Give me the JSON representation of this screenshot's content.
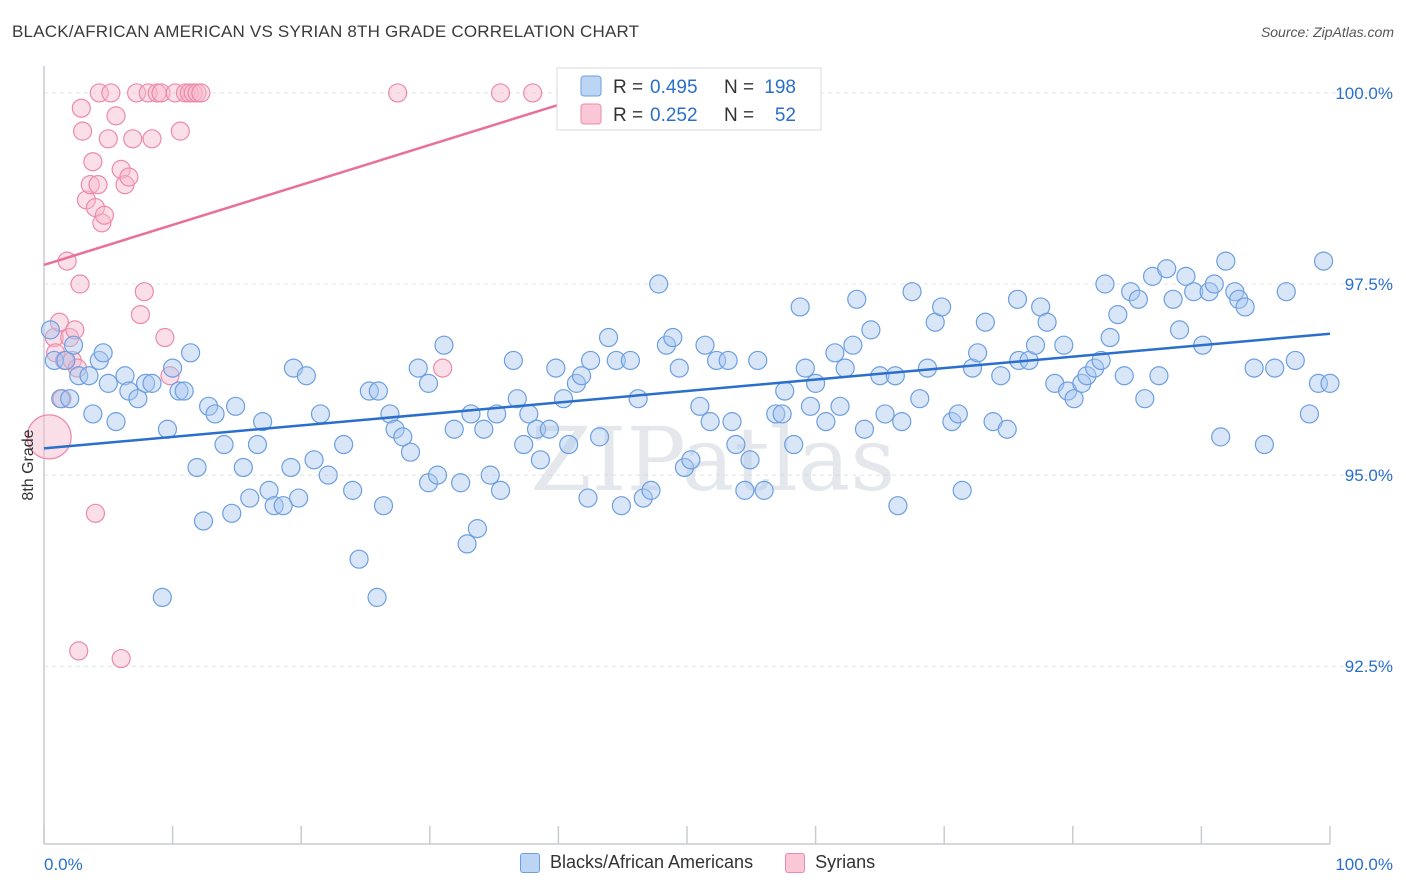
{
  "title": "BLACK/AFRICAN AMERICAN VS SYRIAN 8TH GRADE CORRELATION CHART",
  "source": "Source: ZipAtlas.com",
  "watermark": "ZIPatlas",
  "chart_data": {
    "type": "scatter",
    "ylabel": "8th Grade",
    "xlim": [
      0,
      100
    ],
    "ylim": [
      90.2,
      100.3
    ],
    "x_tick_labels": [
      "0.0%",
      "100.0%"
    ],
    "y_ticks": [
      100.0,
      97.5,
      95.0,
      92.5
    ],
    "y_tick_labels": [
      "100.0%",
      "97.5%",
      "95.0%",
      "92.5%"
    ],
    "grid": true,
    "legend_inset": {
      "position": "top-center",
      "rows": [
        {
          "r_label": "R =",
          "r_value": "0.495",
          "n_label": "N =",
          "n_value": "198"
        },
        {
          "r_label": "R =",
          "r_value": "0.252",
          "n_label": "N =",
          "n_value": "52"
        }
      ]
    },
    "colors": {
      "blue_fill": "#a9c8f0",
      "blue_stroke": "#6d9fe0",
      "blue_line": "#2a6fcc",
      "pink_fill": "#f7b9cb",
      "pink_stroke": "#ec8aa9",
      "pink_line": "#e8709a",
      "value_text": "#2a6fcc"
    },
    "series": [
      {
        "name": "Blacks/African Americans",
        "trend": {
          "x": [
            0,
            100
          ],
          "y": [
            95.35,
            96.85
          ]
        },
        "points": [
          [
            0.5,
            96.9
          ],
          [
            0.8,
            96.5
          ],
          [
            1.3,
            96.0
          ],
          [
            1.7,
            96.5
          ],
          [
            2.0,
            96.0
          ],
          [
            2.3,
            96.7
          ],
          [
            2.7,
            96.3
          ],
          [
            3.5,
            96.3
          ],
          [
            3.8,
            95.8
          ],
          [
            4.3,
            96.5
          ],
          [
            4.6,
            96.6
          ],
          [
            5.0,
            96.2
          ],
          [
            5.6,
            95.7
          ],
          [
            6.3,
            96.3
          ],
          [
            6.6,
            96.1
          ],
          [
            7.3,
            96.0
          ],
          [
            7.9,
            96.2
          ],
          [
            8.4,
            96.2
          ],
          [
            9.2,
            93.4
          ],
          [
            9.6,
            95.6
          ],
          [
            10.0,
            96.4
          ],
          [
            10.5,
            96.1
          ],
          [
            10.9,
            96.1
          ],
          [
            11.4,
            96.6
          ],
          [
            11.9,
            95.1
          ],
          [
            12.4,
            94.4
          ],
          [
            12.8,
            95.9
          ],
          [
            13.3,
            95.8
          ],
          [
            14.0,
            95.4
          ],
          [
            14.6,
            94.5
          ],
          [
            14.9,
            95.9
          ],
          [
            15.5,
            95.1
          ],
          [
            16.0,
            94.7
          ],
          [
            16.6,
            95.4
          ],
          [
            17.0,
            95.7
          ],
          [
            17.5,
            94.8
          ],
          [
            17.9,
            94.6
          ],
          [
            18.6,
            94.6
          ],
          [
            19.2,
            95.1
          ],
          [
            19.8,
            94.7
          ],
          [
            19.4,
            96.4
          ],
          [
            20.4,
            96.3
          ],
          [
            21.0,
            95.2
          ],
          [
            21.5,
            95.8
          ],
          [
            22.1,
            95.0
          ],
          [
            23.3,
            95.4
          ],
          [
            24.0,
            94.8
          ],
          [
            24.5,
            93.9
          ],
          [
            25.3,
            96.1
          ],
          [
            25.9,
            93.4
          ],
          [
            26.4,
            94.6
          ],
          [
            26.0,
            96.1
          ],
          [
            26.9,
            95.8
          ],
          [
            27.3,
            95.6
          ],
          [
            27.9,
            95.5
          ],
          [
            28.5,
            95.3
          ],
          [
            29.1,
            96.4
          ],
          [
            29.9,
            94.9
          ],
          [
            29.9,
            96.2
          ],
          [
            30.6,
            95.0
          ],
          [
            31.1,
            96.7
          ],
          [
            31.9,
            95.6
          ],
          [
            32.4,
            94.9
          ],
          [
            32.9,
            94.1
          ],
          [
            33.2,
            95.8
          ],
          [
            33.7,
            94.3
          ],
          [
            34.2,
            95.6
          ],
          [
            34.7,
            95.0
          ],
          [
            35.2,
            95.8
          ],
          [
            35.5,
            94.8
          ],
          [
            36.8,
            96.0
          ],
          [
            36.5,
            96.5
          ],
          [
            37.3,
            95.4
          ],
          [
            37.7,
            95.8
          ],
          [
            38.3,
            95.6
          ],
          [
            38.6,
            95.2
          ],
          [
            39.3,
            95.6
          ],
          [
            39.8,
            96.4
          ],
          [
            40.4,
            96.0
          ],
          [
            40.8,
            95.4
          ],
          [
            41.4,
            96.2
          ],
          [
            41.8,
            96.3
          ],
          [
            42.5,
            96.5
          ],
          [
            42.3,
            94.7
          ],
          [
            43.2,
            95.5
          ],
          [
            43.9,
            96.8
          ],
          [
            44.5,
            96.5
          ],
          [
            44.9,
            94.6
          ],
          [
            45.6,
            96.5
          ],
          [
            46.2,
            96.0
          ],
          [
            46.6,
            94.7
          ],
          [
            47.2,
            94.8
          ],
          [
            47.8,
            97.5
          ],
          [
            48.4,
            96.7
          ],
          [
            48.9,
            96.8
          ],
          [
            49.4,
            96.4
          ],
          [
            49.8,
            95.1
          ],
          [
            50.3,
            95.2
          ],
          [
            51.0,
            95.9
          ],
          [
            51.4,
            96.7
          ],
          [
            51.8,
            95.7
          ],
          [
            52.3,
            96.5
          ],
          [
            53.2,
            96.5
          ],
          [
            53.5,
            95.7
          ],
          [
            53.8,
            95.4
          ],
          [
            54.5,
            94.8
          ],
          [
            54.9,
            95.2
          ],
          [
            55.5,
            96.5
          ],
          [
            56.0,
            94.8
          ],
          [
            56.9,
            95.8
          ],
          [
            57.4,
            95.8
          ],
          [
            57.6,
            96.1
          ],
          [
            58.3,
            95.4
          ],
          [
            58.8,
            97.2
          ],
          [
            59.2,
            96.4
          ],
          [
            59.6,
            95.9
          ],
          [
            60.0,
            96.2
          ],
          [
            60.8,
            95.7
          ],
          [
            61.5,
            96.6
          ],
          [
            61.9,
            95.9
          ],
          [
            62.3,
            96.4
          ],
          [
            62.9,
            96.7
          ],
          [
            63.2,
            97.3
          ],
          [
            63.8,
            95.6
          ],
          [
            64.3,
            96.9
          ],
          [
            65.0,
            96.3
          ],
          [
            65.4,
            95.8
          ],
          [
            66.2,
            96.3
          ],
          [
            66.7,
            95.7
          ],
          [
            66.4,
            94.6
          ],
          [
            67.5,
            97.4
          ],
          [
            68.1,
            96.0
          ],
          [
            68.7,
            96.4
          ],
          [
            69.3,
            97.0
          ],
          [
            69.8,
            97.2
          ],
          [
            70.6,
            95.7
          ],
          [
            71.1,
            95.8
          ],
          [
            71.4,
            94.8
          ],
          [
            72.2,
            96.4
          ],
          [
            72.6,
            96.6
          ],
          [
            73.2,
            97.0
          ],
          [
            73.8,
            95.7
          ],
          [
            74.4,
            96.3
          ],
          [
            74.9,
            95.6
          ],
          [
            75.7,
            97.3
          ],
          [
            75.8,
            96.5
          ],
          [
            76.6,
            96.5
          ],
          [
            77.1,
            96.7
          ],
          [
            77.5,
            97.2
          ],
          [
            78.0,
            97.0
          ],
          [
            78.6,
            96.2
          ],
          [
            79.3,
            96.7
          ],
          [
            79.6,
            96.1
          ],
          [
            80.1,
            96.0
          ],
          [
            80.7,
            96.2
          ],
          [
            81.1,
            96.3
          ],
          [
            81.7,
            96.4
          ],
          [
            82.2,
            96.5
          ],
          [
            82.5,
            97.5
          ],
          [
            82.9,
            96.8
          ],
          [
            83.5,
            97.1
          ],
          [
            84.0,
            96.3
          ],
          [
            84.5,
            97.4
          ],
          [
            85.1,
            97.3
          ],
          [
            85.6,
            96.0
          ],
          [
            86.2,
            97.6
          ],
          [
            86.7,
            96.3
          ],
          [
            87.3,
            97.7
          ],
          [
            87.8,
            97.3
          ],
          [
            88.3,
            96.9
          ],
          [
            88.8,
            97.6
          ],
          [
            89.4,
            97.4
          ],
          [
            90.1,
            96.7
          ],
          [
            90.6,
            97.4
          ],
          [
            91.0,
            97.5
          ],
          [
            91.5,
            95.5
          ],
          [
            91.9,
            97.8
          ],
          [
            92.6,
            97.4
          ],
          [
            92.9,
            97.3
          ],
          [
            93.4,
            97.2
          ],
          [
            94.1,
            96.4
          ],
          [
            94.9,
            95.4
          ],
          [
            95.7,
            96.4
          ],
          [
            96.6,
            97.4
          ],
          [
            97.3,
            96.5
          ],
          [
            98.4,
            95.8
          ],
          [
            99.1,
            96.2
          ],
          [
            99.5,
            97.8
          ],
          [
            100.0,
            96.2
          ]
        ]
      },
      {
        "name": "Syrians",
        "trend": {
          "x": [
            0,
            43
          ],
          "y": [
            97.75,
            100.0
          ]
        },
        "points": [
          [
            0.4,
            95.5
          ],
          [
            0.8,
            96.8
          ],
          [
            0.9,
            96.6
          ],
          [
            1.2,
            97.0
          ],
          [
            1.4,
            96.0
          ],
          [
            1.6,
            96.5
          ],
          [
            1.8,
            97.8
          ],
          [
            2.0,
            96.8
          ],
          [
            2.2,
            96.5
          ],
          [
            2.4,
            96.9
          ],
          [
            2.6,
            96.4
          ],
          [
            2.8,
            97.5
          ],
          [
            2.9,
            99.8
          ],
          [
            3.0,
            99.5
          ],
          [
            3.3,
            98.6
          ],
          [
            3.6,
            98.8
          ],
          [
            3.8,
            99.1
          ],
          [
            4.0,
            98.5
          ],
          [
            4.2,
            98.8
          ],
          [
            4.5,
            98.3
          ],
          [
            4.7,
            98.4
          ],
          [
            4.3,
            100.0
          ],
          [
            5.0,
            99.4
          ],
          [
            5.2,
            100.0
          ],
          [
            5.6,
            99.7
          ],
          [
            6.0,
            99.0
          ],
          [
            6.3,
            98.8
          ],
          [
            6.6,
            98.9
          ],
          [
            6.9,
            99.4
          ],
          [
            7.2,
            100.0
          ],
          [
            7.5,
            97.1
          ],
          [
            7.8,
            97.4
          ],
          [
            8.1,
            100.0
          ],
          [
            8.4,
            99.4
          ],
          [
            8.8,
            100.0
          ],
          [
            9.1,
            100.0
          ],
          [
            9.4,
            96.8
          ],
          [
            9.8,
            96.3
          ],
          [
            10.2,
            100.0
          ],
          [
            10.6,
            99.5
          ],
          [
            11.0,
            100.0
          ],
          [
            11.3,
            100.0
          ],
          [
            11.6,
            100.0
          ],
          [
            11.9,
            100.0
          ],
          [
            12.2,
            100.0
          ],
          [
            4.0,
            94.5
          ],
          [
            2.7,
            92.7
          ],
          [
            6.0,
            92.6
          ],
          [
            38.0,
            100.0
          ],
          [
            27.5,
            100.0
          ],
          [
            31.0,
            96.4
          ],
          [
            35.5,
            100.0
          ]
        ]
      }
    ]
  }
}
